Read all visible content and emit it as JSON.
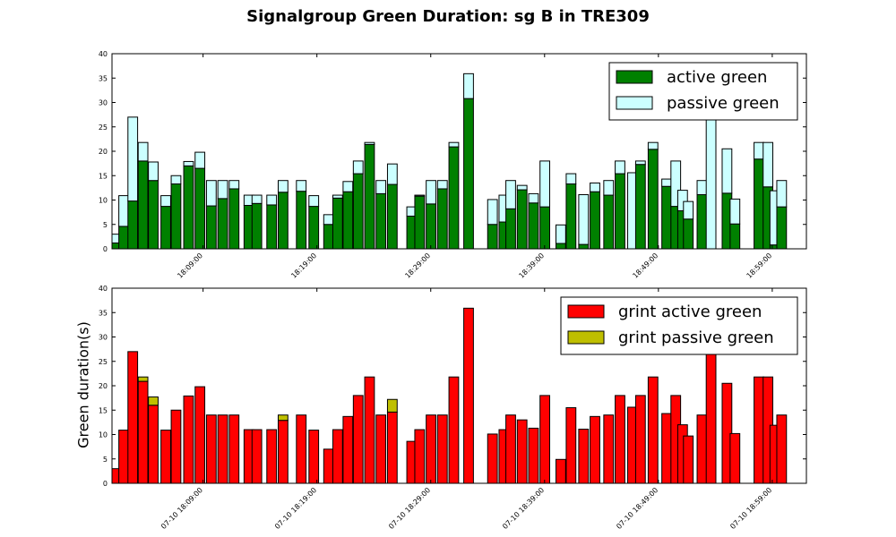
{
  "title": "Signalgroup Green Duration: sg B in TRE309",
  "colors": {
    "active_green": "#008000",
    "passive_green": "#ccffff",
    "grint_active_green": "#ff0000",
    "grint_passive_green": "#bfbf00"
  },
  "chart_data": [
    {
      "type": "bar",
      "stacked": true,
      "title": "",
      "xlabel": "",
      "ylabel": "",
      "ylim": [
        0,
        40
      ],
      "yticks": [
        0,
        5,
        10,
        15,
        20,
        25,
        30,
        35,
        40
      ],
      "xlim_minutes": [
        0,
        61
      ],
      "xtick_labels": [
        "18:09:00",
        "18:19:00",
        "18:29:00",
        "18:39:00",
        "18:49:00",
        "18:59:00"
      ],
      "xtick_minutes": [
        8,
        18,
        28,
        38,
        48,
        58
      ],
      "legend_position": "top-right",
      "x_minutes": [
        0.0,
        0.6,
        1.4,
        2.3,
        3.2,
        4.3,
        5.2,
        6.3,
        7.3,
        8.3,
        9.3,
        10.3,
        11.6,
        12.3,
        13.6,
        14.6,
        16.2,
        17.3,
        18.6,
        19.4,
        20.3,
        21.2,
        22.2,
        23.2,
        24.2,
        25.9,
        26.6,
        27.6,
        28.6,
        29.6,
        30.9,
        33.0,
        34.0,
        34.6,
        35.6,
        36.6,
        37.6,
        39.0,
        39.9,
        41.0,
        42.0,
        43.2,
        44.2,
        45.3,
        46.0,
        47.1,
        48.3,
        49.1,
        49.7,
        50.2,
        51.4,
        52.2,
        53.6,
        54.3,
        56.4,
        57.2,
        57.8,
        58.4
      ],
      "series": [
        {
          "name": "active green",
          "values": [
            1.2,
            4.6,
            9.8,
            18,
            14,
            8.7,
            13.3,
            17,
            16.5,
            8.8,
            10.3,
            12.3,
            8.9,
            9.3,
            9,
            11.6,
            11.8,
            8.7,
            5,
            10.4,
            11.7,
            15.4,
            21.4,
            11.3,
            13.2,
            6.7,
            10.8,
            9.2,
            12.3,
            20.9,
            30.8,
            5,
            5.5,
            8.2,
            12.1,
            9.4,
            8.6,
            1.1,
            13.3,
            0.9,
            11.7,
            11,
            15.4,
            0,
            17.3,
            20.4,
            12.8,
            8.7,
            7.8,
            6.1,
            11.1,
            0,
            11.4,
            5.1,
            18.4,
            12.7,
            0.8,
            8.6
          ]
        },
        {
          "name": "passive green",
          "values": [
            1.8,
            6.3,
            17.2,
            3.8,
            3.8,
            2.2,
            1.7,
            0.9,
            3.3,
            5.2,
            3.7,
            1.7,
            2.1,
            1.7,
            2,
            2.4,
            2.2,
            2.2,
            2,
            0.6,
            2.1,
            2.6,
            0.4,
            2.7,
            4.2,
            1.9,
            0.2,
            4.8,
            1.7,
            0.9,
            5.1,
            5.1,
            5.5,
            5.8,
            0.9,
            1.9,
            9.4,
            3.8,
            2.1,
            10.2,
            1.8,
            3,
            2.6,
            15.6,
            0.7,
            1.4,
            1.5,
            9.3,
            4.2,
            3.6,
            2.9,
            27,
            9.1,
            5.1,
            3.4,
            9.1,
            11.1,
            5.4
          ]
        }
      ]
    },
    {
      "type": "bar",
      "stacked": true,
      "title": "",
      "xlabel": "",
      "ylabel": "Green duration(s)",
      "ylim": [
        0,
        40
      ],
      "yticks": [
        0,
        5,
        10,
        15,
        20,
        25,
        30,
        35,
        40
      ],
      "xlim_minutes": [
        0,
        61
      ],
      "xtick_labels": [
        "07-10 18:09:00",
        "07-10 18:19:00",
        "07-10 18:29:00",
        "07-10 18:39:00",
        "07-10 18:49:00",
        "07-10 18:59:00"
      ],
      "xtick_minutes": [
        8,
        18,
        28,
        38,
        48,
        58
      ],
      "legend_position": "top-right",
      "x_minutes": [
        0.0,
        0.6,
        1.4,
        2.3,
        3.2,
        4.3,
        5.2,
        6.3,
        7.3,
        8.3,
        9.3,
        10.3,
        11.6,
        12.3,
        13.6,
        14.6,
        16.2,
        17.3,
        18.6,
        19.4,
        20.3,
        21.2,
        22.2,
        23.2,
        24.2,
        25.9,
        26.6,
        27.6,
        28.6,
        29.6,
        30.9,
        33.0,
        34.0,
        34.6,
        35.6,
        36.6,
        37.6,
        39.0,
        39.9,
        41.0,
        42.0,
        43.2,
        44.2,
        45.3,
        46.0,
        47.1,
        48.3,
        49.1,
        49.7,
        50.2,
        51.4,
        52.2,
        53.6,
        54.3,
        56.4,
        57.2,
        57.8,
        58.4
      ],
      "series": [
        {
          "name": "grint active green",
          "values": [
            3,
            10.9,
            27,
            20.9,
            16,
            10.9,
            15,
            17.9,
            19.8,
            14,
            14,
            14,
            11,
            11,
            11,
            12.9,
            14,
            10.9,
            7,
            11,
            13.7,
            18,
            21.8,
            14,
            14.6,
            8.6,
            11,
            14,
            14,
            21.8,
            35.9,
            10.1,
            11,
            14,
            13,
            11.3,
            18,
            4.9,
            15.5,
            11.1,
            13.7,
            14,
            18,
            15.6,
            18,
            21.8,
            14.3,
            18,
            12,
            9.7,
            14,
            27,
            20.5,
            10.2,
            21.8,
            21.8,
            11.9,
            14
          ]
        },
        {
          "name": "grint passive green",
          "values": [
            0,
            0,
            0,
            0.9,
            1.7,
            0,
            0,
            0,
            0,
            0,
            0,
            0,
            0,
            0,
            0,
            1.1,
            0,
            0,
            0,
            0,
            0,
            0,
            0,
            0,
            2.6,
            0,
            0,
            0,
            0,
            0,
            0,
            0,
            0,
            0,
            0,
            0,
            0,
            0,
            0,
            0,
            0,
            0,
            0,
            0,
            0,
            0,
            0,
            0,
            0,
            0,
            0,
            0,
            0,
            0,
            0,
            0,
            0,
            0
          ]
        }
      ]
    }
  ]
}
